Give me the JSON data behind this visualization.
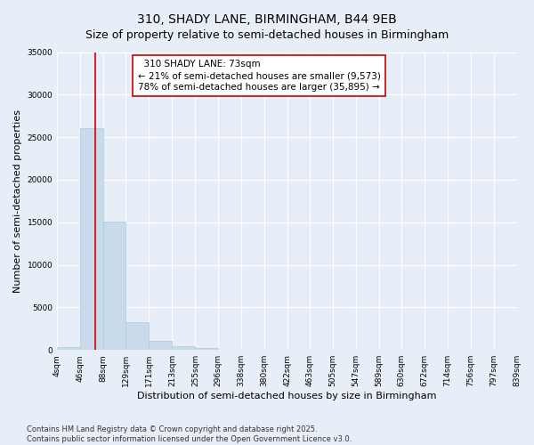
{
  "title": "310, SHADY LANE, BIRMINGHAM, B44 9EB",
  "subtitle": "Size of property relative to semi-detached houses in Birmingham",
  "xlabel": "Distribution of semi-detached houses by size in Birmingham",
  "ylabel": "Number of semi-detached properties",
  "bar_color": "#c9daea",
  "bar_edge_color": "#b0c8de",
  "background_color": "#e8eef8",
  "grid_color": "#ffffff",
  "property_line_color": "#cc0000",
  "property_size": 73,
  "property_label": "310 SHADY LANE: 73sqm",
  "pct_smaller": 21,
  "pct_larger": 78,
  "count_smaller": 9573,
  "count_larger": 35895,
  "annotation_box_facecolor": "#ffffff",
  "annotation_box_edgecolor": "#cc0000",
  "bins": [
    4,
    46,
    88,
    129,
    171,
    213,
    255,
    296,
    338,
    380,
    422,
    463,
    505,
    547,
    589,
    630,
    672,
    714,
    756,
    797,
    839
  ],
  "bin_labels": [
    "4sqm",
    "46sqm",
    "88sqm",
    "129sqm",
    "171sqm",
    "213sqm",
    "255sqm",
    "296sqm",
    "338sqm",
    "380sqm",
    "422sqm",
    "463sqm",
    "505sqm",
    "547sqm",
    "589sqm",
    "630sqm",
    "672sqm",
    "714sqm",
    "756sqm",
    "797sqm",
    "839sqm"
  ],
  "counts": [
    350,
    26100,
    15100,
    3300,
    1050,
    450,
    180,
    50,
    10,
    4,
    2,
    1,
    0,
    0,
    0,
    0,
    0,
    0,
    0,
    0
  ],
  "ylim": [
    0,
    35000
  ],
  "yticks": [
    0,
    5000,
    10000,
    15000,
    20000,
    25000,
    30000,
    35000
  ],
  "footnote": "Contains HM Land Registry data © Crown copyright and database right 2025.\nContains public sector information licensed under the Open Government Licence v3.0.",
  "title_fontsize": 10,
  "subtitle_fontsize": 9,
  "axis_label_fontsize": 8,
  "tick_fontsize": 6.5,
  "annotation_fontsize": 7.5,
  "footnote_fontsize": 6
}
